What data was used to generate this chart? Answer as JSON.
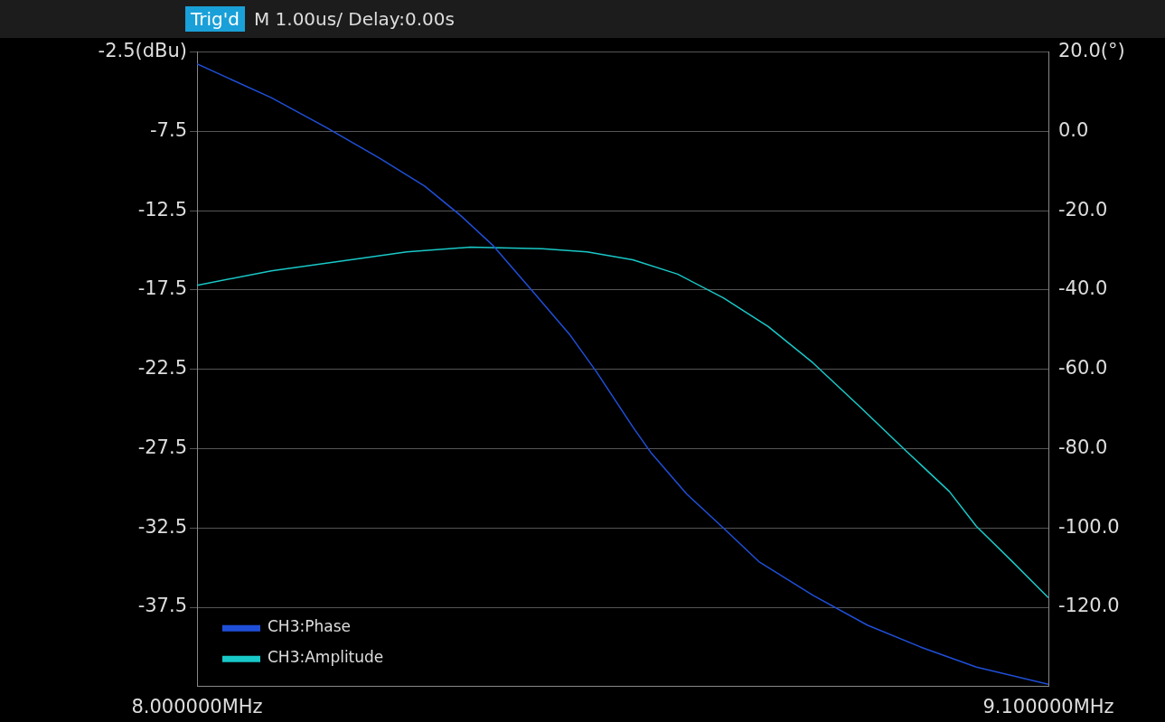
{
  "chart_data": {
    "type": "line",
    "annotations": [
      "Trig'd",
      "M 1.00us/  Delay:0.00s"
    ],
    "xlim": [
      8,
      9.1
    ],
    "xticks": [
      {
        "value": 8,
        "label": "8.000000MHz"
      },
      {
        "value": 9.1,
        "label": "9.100000MHz"
      }
    ],
    "ylim": [
      -42.5,
      -2.5
    ],
    "yticks": [
      {
        "value": -2.5,
        "label": "-2.5(dBu)"
      },
      -7.5,
      -12.5,
      -17.5,
      -22.5,
      -27.5,
      -32.5,
      -37.5
    ],
    "y2lim": [
      -140,
      20
    ],
    "y2ticks": [
      {
        "value": 20,
        "label": "20.0(°)"
      },
      {
        "value": 0,
        "label": "0.0"
      },
      {
        "value": -20,
        "label": "-20.0"
      },
      {
        "value": -40,
        "label": "-40.0"
      },
      {
        "value": -60,
        "label": "-60.0"
      },
      {
        "value": -80,
        "label": "-80.0"
      },
      {
        "value": -100,
        "label": "-100.0"
      },
      {
        "value": -120,
        "label": "-120.0"
      }
    ],
    "grid": "y",
    "legend": "bottom left",
    "marker": "none",
    "line_style": "solid",
    "series": [
      {
        "name": "CH3:Phase",
        "color": "#1f4fd8",
        "axis": "y2",
        "x": [
          8.0,
          8.096,
          8.166,
          8.236,
          8.294,
          8.341,
          8.382,
          8.434,
          8.481,
          8.516,
          8.563,
          8.586,
          8.633,
          8.68,
          8.726,
          8.796,
          8.866,
          8.937,
          9.007,
          9.1
        ],
        "values": [
          17.0,
          8.5,
          1.1,
          -6.8,
          -13.8,
          -21.3,
          -28.7,
          -40.4,
          -51.1,
          -60.6,
          -74.5,
          -80.9,
          -91.5,
          -100,
          -108.5,
          -117,
          -124.5,
          -130.2,
          -135.1,
          -139.4
        ]
      },
      {
        "name": "CH3:Amplitude",
        "color": "#19c8c8",
        "x": [
          8.0,
          8.096,
          8.213,
          8.271,
          8.353,
          8.446,
          8.504,
          8.563,
          8.621,
          8.68,
          8.738,
          8.796,
          8.855,
          8.913,
          8.972,
          9.007,
          9.053,
          9.1
        ],
        "values": [
          -17.2,
          -16.3,
          -15.5,
          -15.1,
          -14.8,
          -14.9,
          -15.1,
          -15.6,
          -16.5,
          -18.0,
          -19.8,
          -22.1,
          -24.8,
          -27.5,
          -30.2,
          -32.4,
          -34.6,
          -36.9
        ]
      }
    ]
  }
}
